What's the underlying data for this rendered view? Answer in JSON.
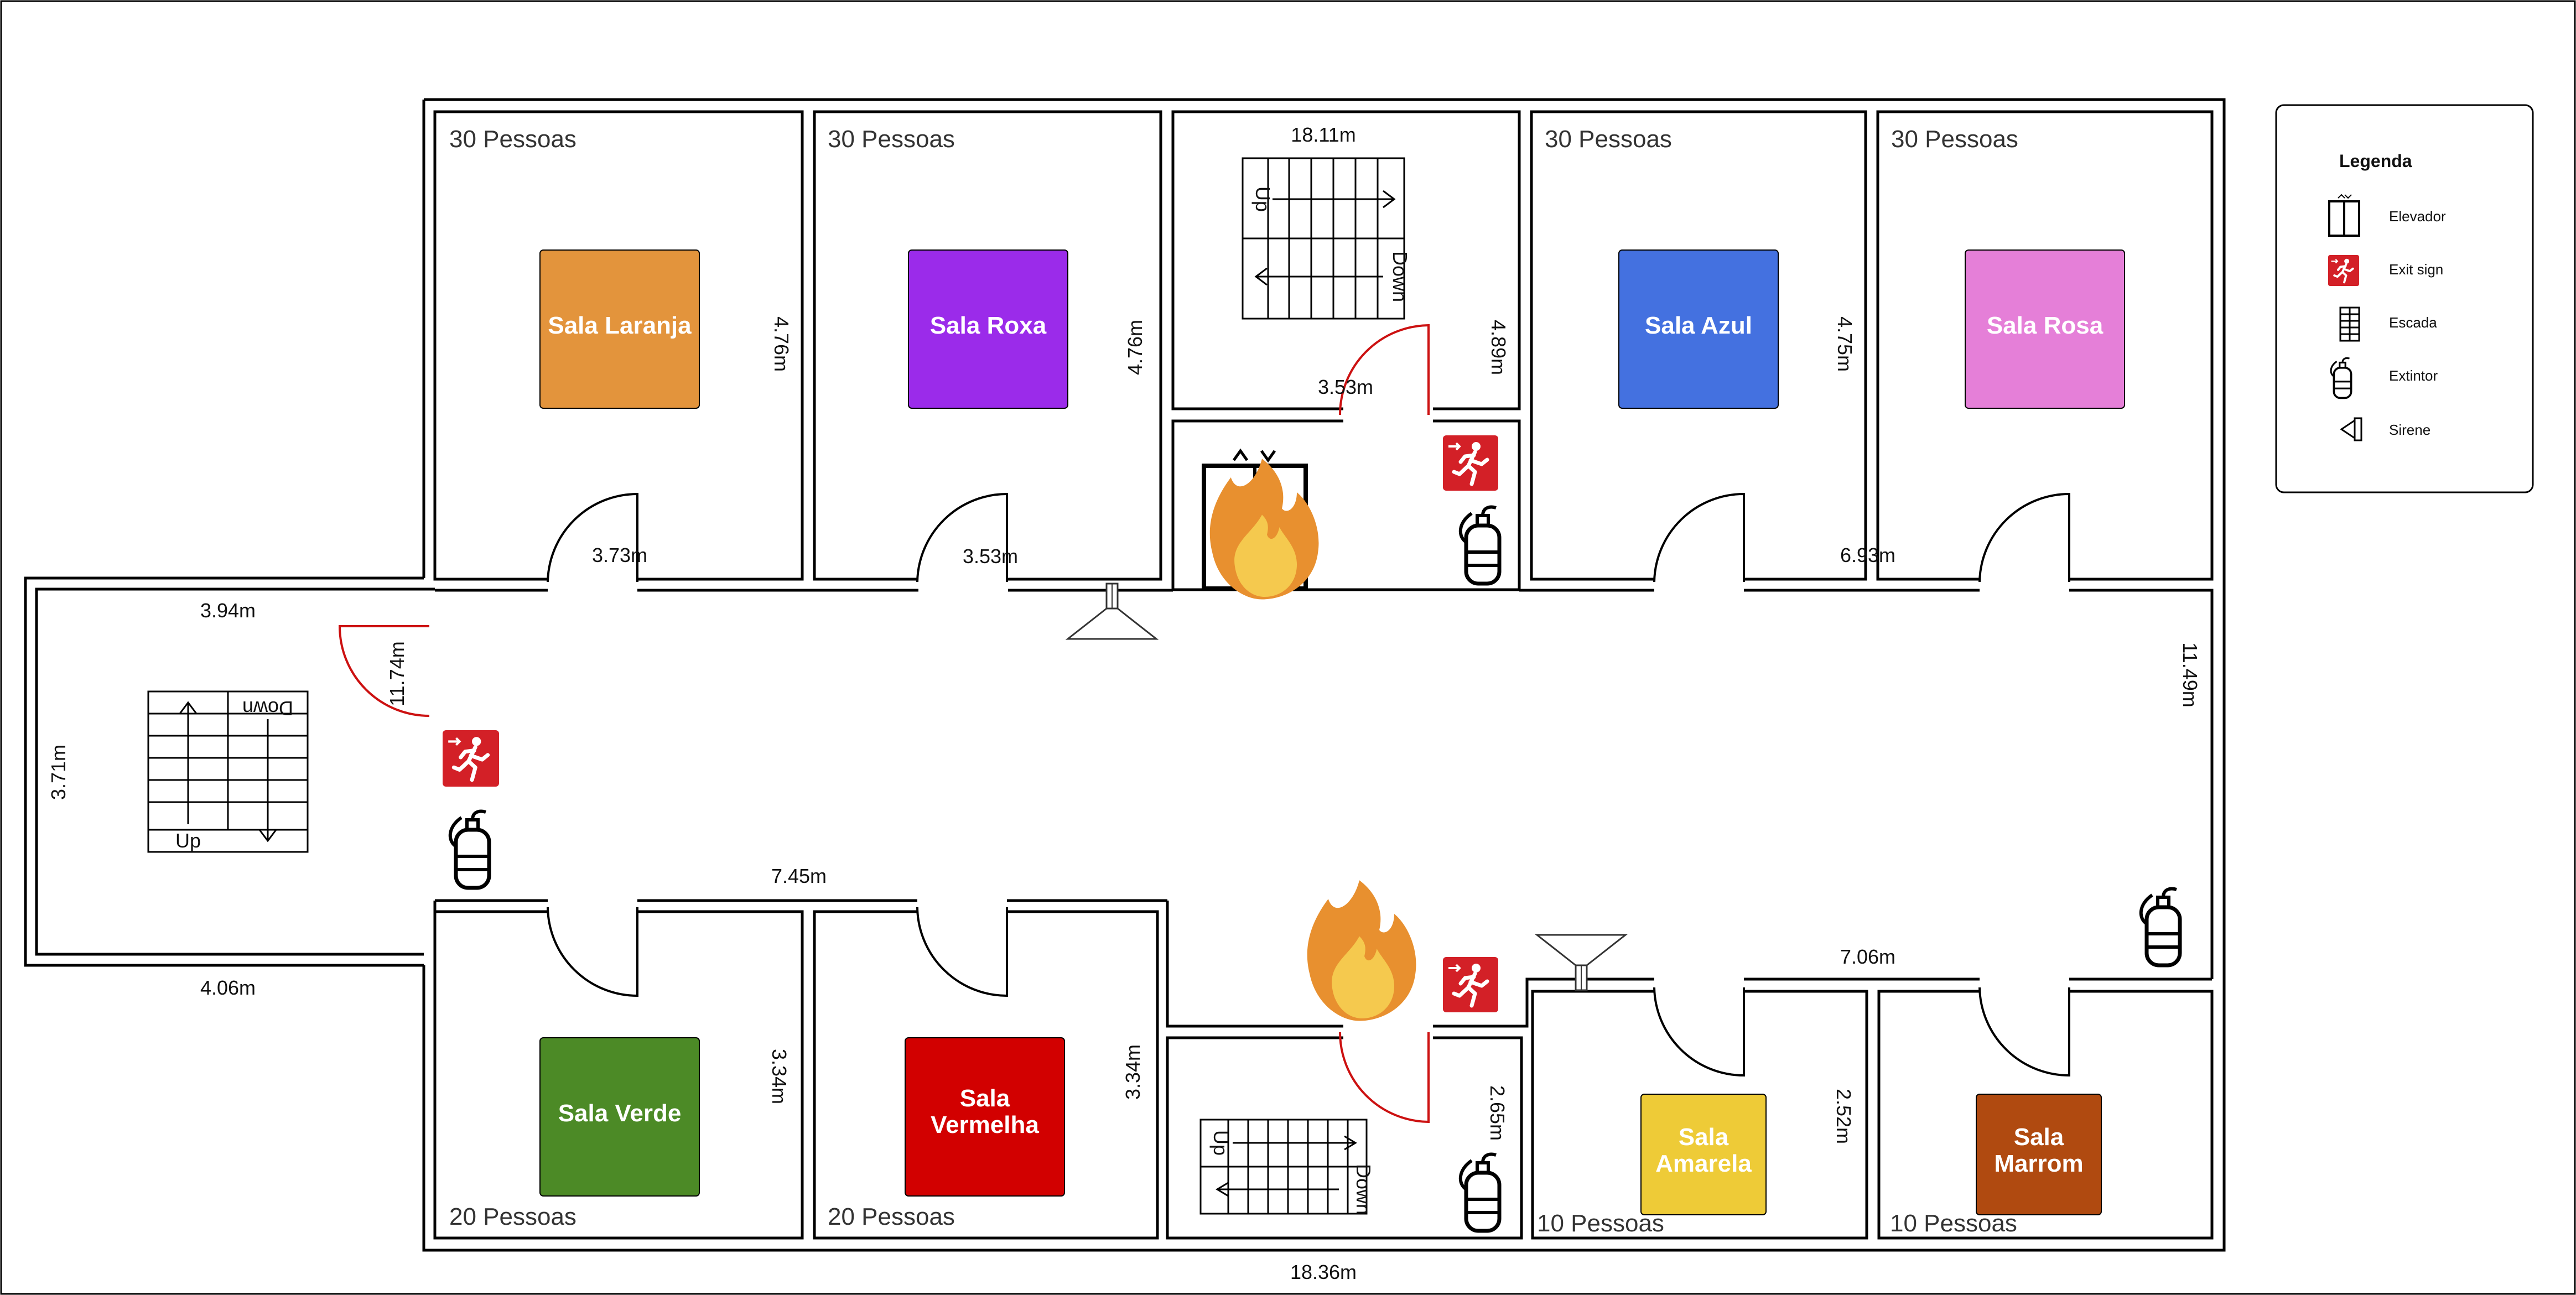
{
  "legend": {
    "title": "Legenda",
    "items": [
      {
        "icon": "elevator-icon",
        "label": "Elevador"
      },
      {
        "icon": "exit-sign-icon",
        "label": "Exit sign"
      },
      {
        "icon": "stairs-icon",
        "label": "Escada"
      },
      {
        "icon": "extinguisher-icon",
        "label": "Extintor"
      },
      {
        "icon": "siren-icon",
        "label": "Sirene"
      }
    ]
  },
  "rooms": [
    {
      "name": "Sala Laranja",
      "capacity": "30 Pessoas",
      "color": "#E3943C"
    },
    {
      "name": "Sala Roxa",
      "capacity": "30 Pessoas",
      "color": "#9B2BEA"
    },
    {
      "name": "Sala Azul",
      "capacity": "30 Pessoas",
      "color": "#4471E0"
    },
    {
      "name": "Sala Rosa",
      "capacity": "30 Pessoas",
      "color": "#E57FD8"
    },
    {
      "name": "Sala Verde",
      "capacity": "20 Pessoas",
      "color": "#4C8A26"
    },
    {
      "name_lines": [
        "Sala",
        "Vermelha"
      ],
      "capacity": "20 Pessoas",
      "color": "#D20000"
    },
    {
      "name_lines": [
        "Sala",
        "Amarela"
      ],
      "capacity": "10 Pessoas",
      "color": "#EECB37"
    },
    {
      "name_lines": [
        "Sala",
        "Marrom"
      ],
      "capacity": "10 Pessoas",
      "color": "#B04A10"
    }
  ],
  "dimensions": {
    "top_stair_width": "18.11m",
    "laranja_height": "4.76m",
    "roxa_height": "4.76m",
    "stair_room_height": "4.89m",
    "azul_height": "4.75m",
    "laranja_door": "3.73m",
    "roxa_door": "3.53m",
    "stair_door": "3.53m",
    "rosa_door": "6.93m",
    "left_room_top": "3.94m",
    "corridor_left": "11.74m",
    "left_room_height": "3.71m",
    "left_room_bottom": "4.06m",
    "corridor_right": "11.49m",
    "verde_top": "7.45m",
    "amarela_top": "7.06m",
    "verde_height": "3.34m",
    "vermelha_height": "3.34m",
    "bottom_stair_height": "2.65m",
    "amarela_height": "2.52m",
    "total_width": "18.36m"
  },
  "stairs": {
    "up": "Up",
    "down": "Down"
  },
  "colors": {
    "wall": "#000000",
    "door_emergency": "#CC1111",
    "exit_sign": "#D32027",
    "fire_outer": "#E8902F",
    "fire_inner": "#F5C94E"
  }
}
